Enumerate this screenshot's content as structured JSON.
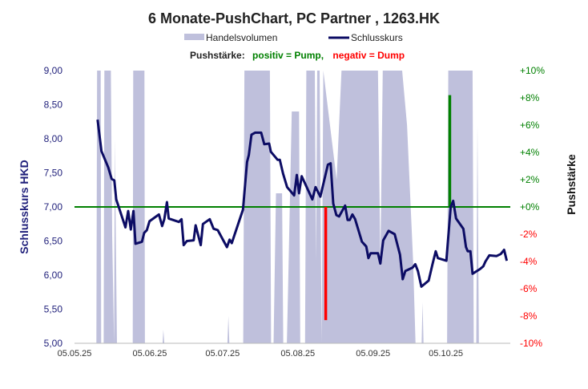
{
  "chart_data": {
    "type": "line",
    "title": "6 Monate-PushChart,  PC Partner , 1263.HK",
    "legend": {
      "position": "top",
      "volume_label": "Handelsvolumen",
      "close_label": "Schlusskurs",
      "push_prefix": "Pushstärke:",
      "push_positive": "positiv = Pump,",
      "push_negative": "negativ = Dump"
    },
    "ylabel_left": "Schlusskurs HKD",
    "ylabel_right": "Pushstärke",
    "ylim_left": [
      5.0,
      9.0
    ],
    "ylim_right": [
      -10,
      10
    ],
    "left_ticks": [
      "5,00",
      "5,50",
      "6,00",
      "6,50",
      "7,00",
      "7,50",
      "8,00",
      "8,50",
      "9,00"
    ],
    "right_ticks": [
      "-10%",
      "-8%",
      "-6%",
      "-4%",
      "-2%",
      "+0%",
      "+2%",
      "+4%",
      "+6%",
      "+8%",
      "+10%"
    ],
    "x_start_date": "05.05.25",
    "x_ticks": [
      {
        "day": 0,
        "label": "05.05.25"
      },
      {
        "day": 31,
        "label": "05.06.25"
      },
      {
        "day": 61,
        "label": "05.07.25"
      },
      {
        "day": 92,
        "label": "05.08.25"
      },
      {
        "day": 123,
        "label": "05.09.25"
      },
      {
        "day": 153,
        "label": "05.10.25"
      }
    ],
    "close_series": [
      [
        9.5,
        8.28
      ],
      [
        11.1,
        7.82
      ],
      [
        13.9,
        7.58
      ],
      [
        15.3,
        7.41
      ],
      [
        16.4,
        7.39
      ],
      [
        17.2,
        7.11
      ],
      [
        21,
        6.7
      ],
      [
        22.1,
        6.94
      ],
      [
        23.2,
        6.67
      ],
      [
        24.3,
        6.94
      ],
      [
        25.1,
        6.46
      ],
      [
        27.8,
        6.49
      ],
      [
        28.7,
        6.62
      ],
      [
        29.8,
        6.66
      ],
      [
        30.9,
        6.79
      ],
      [
        34.8,
        6.89
      ],
      [
        36.1,
        6.72
      ],
      [
        37,
        6.82
      ],
      [
        38.1,
        7.07
      ],
      [
        38.8,
        6.83
      ],
      [
        43,
        6.78
      ],
      [
        44.1,
        6.82
      ],
      [
        45,
        6.44
      ],
      [
        46.3,
        6.5
      ],
      [
        49.1,
        6.51
      ],
      [
        49.9,
        6.73
      ],
      [
        52,
        6.44
      ],
      [
        52.9,
        6.75
      ],
      [
        55.7,
        6.82
      ],
      [
        57.3,
        6.68
      ],
      [
        59,
        6.66
      ],
      [
        62.8,
        6.41
      ],
      [
        63.9,
        6.52
      ],
      [
        64.8,
        6.47
      ],
      [
        69.4,
        6.96
      ],
      [
        71.1,
        7.66
      ],
      [
        71.8,
        7.76
      ],
      [
        72.9,
        8.06
      ],
      [
        74.4,
        8.09
      ],
      [
        76.9,
        8.09
      ],
      [
        78.2,
        7.92
      ],
      [
        80.2,
        7.93
      ],
      [
        80.9,
        7.81
      ],
      [
        83.7,
        7.69
      ],
      [
        84.6,
        7.69
      ],
      [
        85.9,
        7.49
      ],
      [
        87.6,
        7.29
      ],
      [
        90.5,
        7.17
      ],
      [
        91.6,
        7.47
      ],
      [
        92.5,
        7.2
      ],
      [
        93.6,
        7.45
      ],
      [
        98,
        7.11
      ],
      [
        99.3,
        7.29
      ],
      [
        101.3,
        7.15
      ],
      [
        104.4,
        7.62
      ],
      [
        105.5,
        7.64
      ],
      [
        106.6,
        7.05
      ],
      [
        107.9,
        6.88
      ],
      [
        109,
        6.86
      ],
      [
        111.5,
        7.02
      ],
      [
        112.5,
        6.81
      ],
      [
        113.4,
        6.81
      ],
      [
        114.5,
        6.89
      ],
      [
        115.6,
        6.82
      ],
      [
        118.4,
        6.49
      ],
      [
        120.2,
        6.42
      ],
      [
        121.1,
        6.25
      ],
      [
        122,
        6.32
      ],
      [
        125,
        6.32
      ],
      [
        126,
        6.17
      ],
      [
        127.2,
        6.51
      ],
      [
        129.4,
        6.65
      ],
      [
        131.9,
        6.6
      ],
      [
        134.1,
        6.3
      ],
      [
        135.2,
        5.94
      ],
      [
        136.3,
        6.06
      ],
      [
        139.3,
        6.11
      ],
      [
        140.4,
        6.16
      ],
      [
        141.5,
        6.06
      ],
      [
        142.9,
        5.83
      ],
      [
        145.9,
        5.92
      ],
      [
        147.5,
        6.16
      ],
      [
        148.8,
        6.35
      ],
      [
        149.7,
        6.25
      ],
      [
        153.2,
        6.21
      ],
      [
        155,
        7.0
      ],
      [
        156,
        7.09
      ],
      [
        157.2,
        6.83
      ],
      [
        160.2,
        6.68
      ],
      [
        161.3,
        6.41
      ],
      [
        162,
        6.35
      ],
      [
        163.1,
        6.35
      ],
      [
        164,
        6.02
      ],
      [
        167.1,
        6.09
      ],
      [
        168.4,
        6.13
      ],
      [
        169.3,
        6.2
      ],
      [
        170.9,
        6.29
      ],
      [
        173.9,
        6.28
      ],
      [
        175.6,
        6.31
      ],
      [
        177,
        6.37
      ],
      [
        178.1,
        6.21
      ]
    ],
    "volume_relative": [
      [
        0,
        0
      ],
      [
        9,
        0
      ],
      [
        9.3,
        1
      ],
      [
        10.8,
        1
      ],
      [
        11,
        0
      ],
      [
        12,
        0
      ],
      [
        12.3,
        1
      ],
      [
        15,
        1
      ],
      [
        15.5,
        0.4
      ],
      [
        16.3,
        0
      ],
      [
        16.6,
        0.75
      ],
      [
        17.5,
        0
      ],
      [
        24,
        0
      ],
      [
        24.2,
        1
      ],
      [
        28.8,
        1
      ],
      [
        29,
        0
      ],
      [
        36.3,
        0
      ],
      [
        36.6,
        0.05
      ],
      [
        37,
        0
      ],
      [
        63,
        0
      ],
      [
        63.4,
        0.1
      ],
      [
        63.8,
        0
      ],
      [
        69.5,
        0
      ],
      [
        70,
        1
      ],
      [
        80.5,
        1
      ],
      [
        81,
        0
      ],
      [
        82,
        0
      ],
      [
        83,
        0.55
      ],
      [
        85.5,
        0.55
      ],
      [
        86,
        0
      ],
      [
        87.5,
        0
      ],
      [
        88,
        0.2
      ],
      [
        89.5,
        0.85
      ],
      [
        92.5,
        0.85
      ],
      [
        93,
        0
      ],
      [
        95,
        0
      ],
      [
        95.5,
        1
      ],
      [
        99,
        1
      ],
      [
        99.5,
        0.3
      ],
      [
        100,
        1
      ],
      [
        101,
        1
      ],
      [
        101.8,
        0
      ],
      [
        102.5,
        1
      ],
      [
        108,
        0.6
      ],
      [
        110,
        1
      ],
      [
        125,
        1
      ],
      [
        126,
        0.3
      ],
      [
        127,
        1
      ],
      [
        135,
        1
      ],
      [
        137,
        0.8
      ],
      [
        139.5,
        0.3
      ],
      [
        140.5,
        0
      ],
      [
        143,
        0
      ],
      [
        143.4,
        0.15
      ],
      [
        143.8,
        0
      ],
      [
        153.5,
        0
      ],
      [
        154,
        1
      ],
      [
        164,
        1
      ],
      [
        164.5,
        0
      ],
      [
        165.5,
        0
      ],
      [
        166,
        0.8
      ],
      [
        166.6,
        0
      ],
      [
        178,
        0
      ]
    ],
    "push_bars": [
      {
        "day": 103.5,
        "value": -8.3
      },
      {
        "day": 154.6,
        "value": 8.2
      }
    ],
    "colors": {
      "volume": "#bfc0dc",
      "close": "#0c0c64",
      "zero_line": "#008000",
      "positive": "#008000",
      "negative": "#ff0000",
      "left_axis": "#1f1f7a"
    }
  }
}
